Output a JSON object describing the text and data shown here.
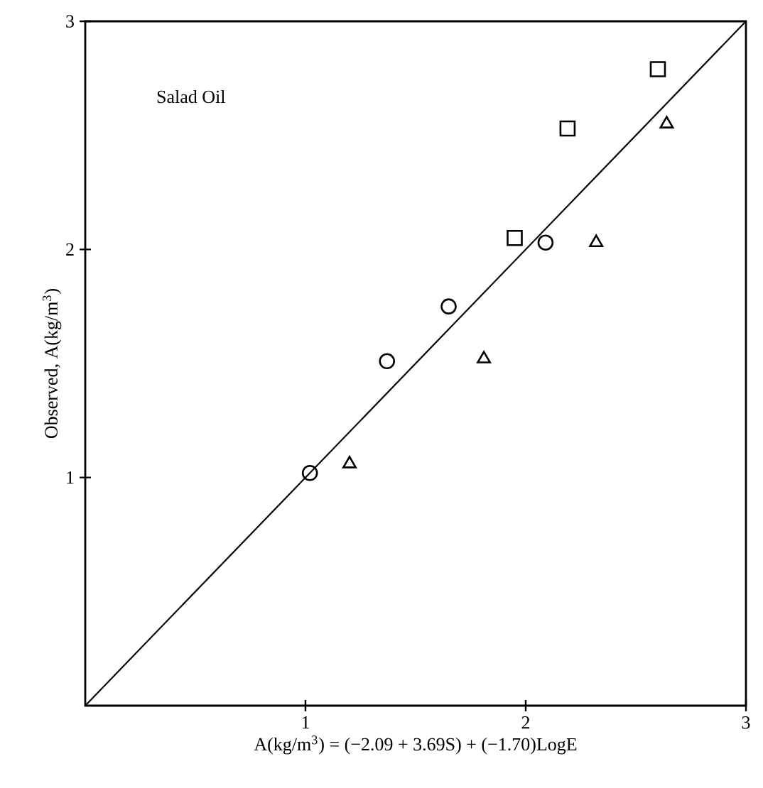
{
  "chart_data": {
    "type": "scatter",
    "xlabel": "A(kg/m$^{3}$) = (−2.09 + 3.69S) + (−1.70)LogE",
    "ylabel": "Observed, A(kg/m$^{3}$)",
    "annotations": [
      "Salad Oil"
    ],
    "xlim": [
      0,
      3
    ],
    "ylim": [
      0,
      3
    ],
    "xticks": [
      1,
      2,
      3
    ],
    "yticks": [
      1,
      2,
      3
    ],
    "grid": false,
    "series": [
      {
        "marker": "circle",
        "color": "#000000",
        "x": [
          1.02,
          1.37,
          1.65,
          2.09
        ],
        "values": [
          1.02,
          1.51,
          1.75,
          2.03
        ]
      },
      {
        "marker": "square",
        "color": "#000000",
        "x": [
          1.95,
          2.19,
          2.6
        ],
        "values": [
          2.05,
          2.53,
          2.79
        ]
      },
      {
        "marker": "triangle",
        "color": "#000000",
        "x": [
          1.2,
          1.81,
          2.32,
          2.64
        ],
        "values": [
          1.06,
          1.52,
          2.03,
          2.55
        ]
      },
      {
        "type": "line",
        "marker": "none",
        "color": "#000000",
        "x": [
          0,
          3
        ],
        "values": [
          0,
          3
        ]
      }
    ]
  }
}
